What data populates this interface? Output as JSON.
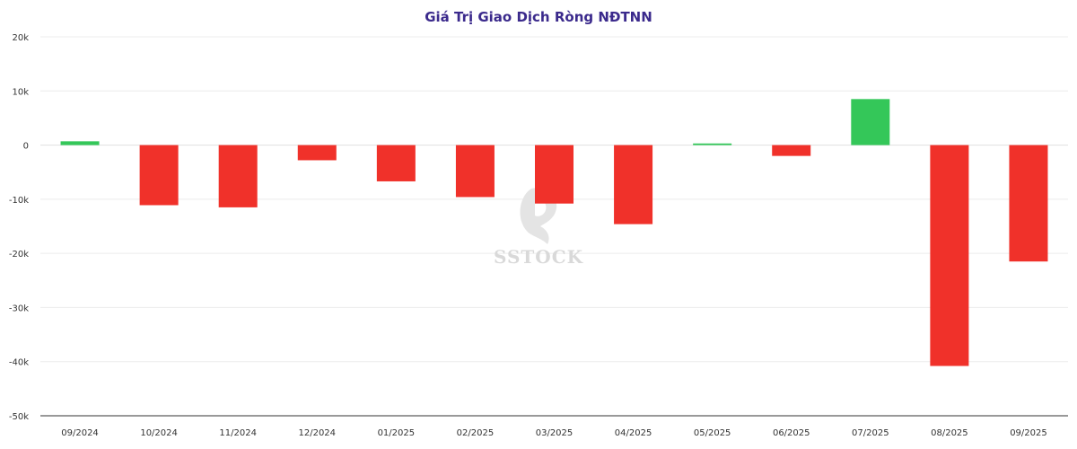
{
  "chart_data": {
    "type": "bar",
    "title": "Giá Trị Giao Dịch Ròng NĐTNN",
    "categories": [
      "09/2024",
      "10/2024",
      "11/2024",
      "12/2024",
      "01/2025",
      "02/2025",
      "03/2025",
      "04/2025",
      "05/2025",
      "06/2025",
      "07/2025",
      "08/2025",
      "09/2025"
    ],
    "values": [
      700,
      -11100,
      -11500,
      -2800,
      -6700,
      -9600,
      -10800,
      -14600,
      300,
      -2000,
      8500,
      -40800,
      -21500
    ],
    "ylim": [
      -50000,
      20000
    ],
    "yticks": [
      20000,
      10000,
      0,
      -10000,
      -20000,
      -30000,
      -40000,
      -50000
    ],
    "ytick_labels": [
      "20k",
      "10k",
      "0",
      "-10k",
      "-20k",
      "-30k",
      "-40k",
      "-50k"
    ],
    "grid": true,
    "colors": {
      "positive": "#34c759",
      "negative": "#f0312a"
    }
  },
  "watermark": {
    "text": "SSTOCK",
    "icon": "horse-head-icon"
  }
}
